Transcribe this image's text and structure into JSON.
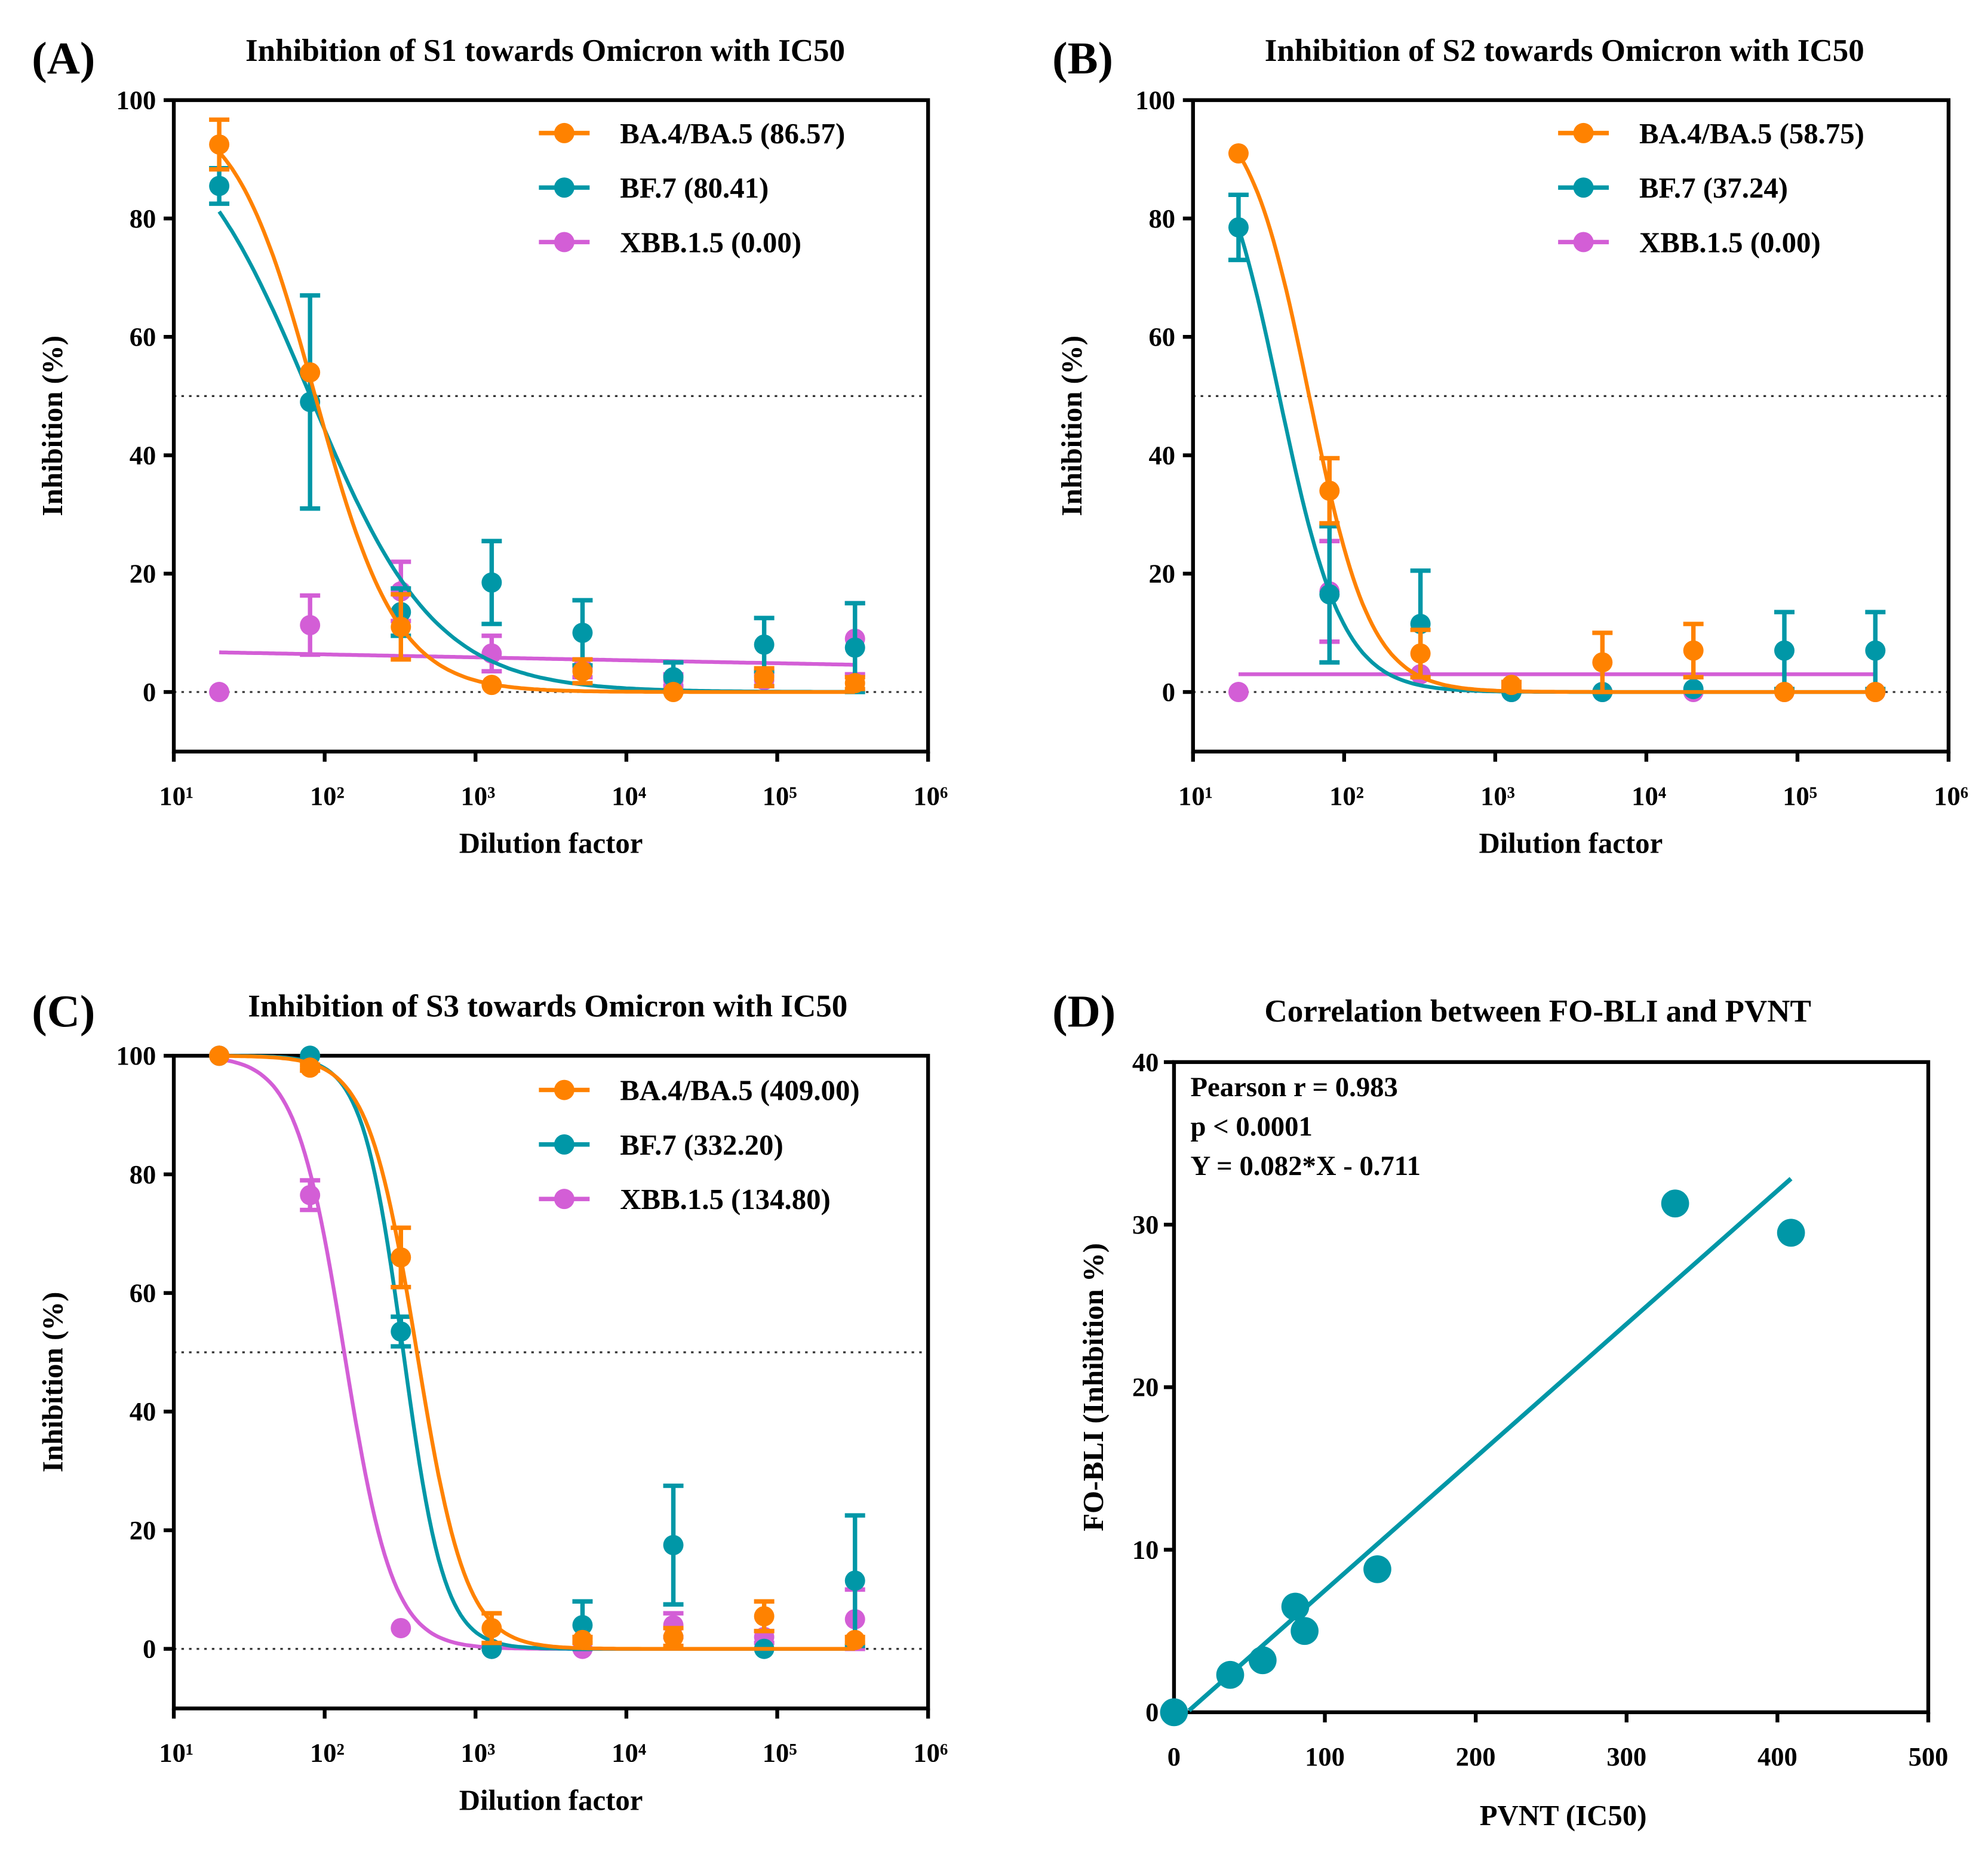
{
  "colors": {
    "BA.4/BA.5": "#FF8200",
    "BF.7": "#0097A7",
    "XBB.1.5": "#D35ED6",
    "axis": "#000000"
  },
  "chart_data": [
    {
      "panel": "(A)",
      "type": "line",
      "title": "Inhibition of S1 towards Omicron with IC50",
      "xlabel": "Dilution factor",
      "ylabel": "Inhibition (%)",
      "xscale": "log",
      "xlim": [
        10,
        1000000
      ],
      "ylim": [
        -10,
        100
      ],
      "yticks": [
        0,
        20,
        40,
        60,
        80,
        100
      ],
      "xticks": [
        "10¹",
        "10²",
        "10³",
        "10⁴",
        "10⁵",
        "10⁶"
      ],
      "reference_lines": [
        0,
        50
      ],
      "legend_position": "top-right",
      "x": [
        20,
        80,
        320,
        1280,
        5120,
        20480,
        81920,
        327680
      ],
      "series": [
        {
          "name": "BA.4/BA.5 (86.57)",
          "key": "BA.4/BA.5",
          "values": [
            92.5,
            54,
            11,
            1.2,
            3.5,
            0,
            2.5,
            1.5
          ],
          "error": [
            4.2,
            0,
            5.5,
            0,
            2,
            0,
            1.5,
            1
          ],
          "fit": {
            "type": "hill",
            "top": 100,
            "bottom": 0,
            "ic50": 86.57,
            "hill": 1.6
          }
        },
        {
          "name": "BF.7 (80.41)",
          "key": "BF.7",
          "values": [
            85.5,
            49,
            13.5,
            18.5,
            10,
            2.5,
            8,
            7.5
          ],
          "error": [
            3,
            18,
            4,
            7,
            5.5,
            2.5,
            4.5,
            7.5
          ],
          "fit": {
            "type": "hill",
            "top": 100,
            "bottom": 0,
            "ic50": 80.41,
            "hill": 1.05
          }
        },
        {
          "name": "XBB.1.5 (0.00)",
          "key": "XBB.1.5",
          "values": [
            0,
            11.3,
            17,
            6.5,
            4,
            2,
            2,
            9
          ],
          "error": [
            0,
            5,
            5,
            3,
            1.5,
            1,
            1,
            6
          ],
          "fit": {
            "type": "linear-log",
            "start": 6.7,
            "end": 4.6
          }
        }
      ]
    },
    {
      "panel": "(B)",
      "type": "line",
      "title": "Inhibition of S2 towards Omicron with IC50",
      "xlabel": "Dilution factor",
      "ylabel": "Inhibition (%)",
      "xscale": "log",
      "xlim": [
        10,
        1000000
      ],
      "ylim": [
        -10,
        100
      ],
      "yticks": [
        0,
        20,
        40,
        60,
        80,
        100
      ],
      "xticks": [
        "10¹",
        "10²",
        "10³",
        "10⁴",
        "10⁵",
        "10⁶"
      ],
      "reference_lines": [
        0,
        50
      ],
      "legend_position": "top-right",
      "x": [
        20,
        80,
        320,
        1280,
        5120,
        20480,
        81920,
        327680
      ],
      "series": [
        {
          "name": "BA.4/BA.5 (58.75)",
          "key": "BA.4/BA.5",
          "values": [
            91,
            34,
            6.5,
            1.2,
            5,
            7,
            0,
            0
          ],
          "error": [
            0,
            5.5,
            4,
            0.5,
            5,
            4.5,
            0,
            0
          ],
          "fit": {
            "type": "hill",
            "top": 100,
            "bottom": 0,
            "ic50": 58.75,
            "hill": 2.14
          }
        },
        {
          "name": "BF.7 (37.24)",
          "key": "BF.7",
          "values": [
            78.5,
            16.5,
            11.5,
            0,
            0,
            0.5,
            7,
            7
          ],
          "error": [
            5.5,
            11.5,
            9,
            0,
            0,
            0,
            6.5,
            6.5
          ],
          "fit": {
            "type": "hill",
            "top": 100,
            "bottom": 0,
            "ic50": 37.24,
            "hill": 2.08
          }
        },
        {
          "name": "XBB.1.5 (0.00)",
          "key": "XBB.1.5",
          "values": [
            0,
            17,
            3,
            0,
            0,
            0,
            0,
            0
          ],
          "error": [
            0,
            8.5,
            0,
            0,
            0,
            0,
            0,
            0
          ],
          "fit": {
            "type": "linear-log",
            "start": 3,
            "end": 3
          }
        }
      ]
    },
    {
      "panel": "(C)",
      "type": "line",
      "title": "Inhibition of S3 towards Omicron with IC50",
      "xlabel": "Dilution factor",
      "ylabel": "Inhibition (%)",
      "xscale": "log",
      "xlim": [
        10,
        1000000
      ],
      "ylim": [
        -10,
        100
      ],
      "yticks": [
        0,
        20,
        40,
        60,
        80,
        100
      ],
      "xticks": [
        "10¹",
        "10²",
        "10³",
        "10⁴",
        "10⁵",
        "10⁶"
      ],
      "reference_lines": [
        0,
        50
      ],
      "legend_position": "top-right",
      "x": [
        20,
        80,
        320,
        1280,
        5120,
        20480,
        81920,
        327680
      ],
      "series": [
        {
          "name": "BA.4/BA.5 (409.00)",
          "key": "BA.4/BA.5",
          "values": [
            100,
            98,
            66,
            3.5,
            1.5,
            2,
            5.5,
            1.5
          ],
          "error": [
            0,
            0.5,
            5,
            2.5,
            0.5,
            1.5,
            2.5,
            0.5
          ],
          "fit": {
            "type": "hill",
            "top": 100,
            "bottom": 0,
            "ic50": 409.0,
            "hill": 2.67
          }
        },
        {
          "name": "BF.7 (332.20)",
          "key": "BF.7",
          "values": [
            100,
            100,
            53.5,
            0,
            4,
            17.5,
            0,
            11.5
          ],
          "error": [
            0,
            0,
            2.5,
            0,
            4,
            10,
            0,
            11
          ],
          "fit": {
            "type": "hill",
            "top": 100,
            "bottom": 0,
            "ic50": 332.2,
            "hill": 3.2
          }
        },
        {
          "name": "XBB.1.5 (134.80)",
          "key": "XBB.1.5",
          "values": [
            100,
            76.5,
            3.5,
            0,
            0,
            4,
            2,
            5
          ],
          "error": [
            0,
            2.5,
            0,
            0,
            0,
            2,
            1,
            5
          ],
          "fit": {
            "type": "hill",
            "top": 100,
            "bottom": 0,
            "ic50": 134.8,
            "hill": 2.7
          }
        }
      ]
    },
    {
      "panel": "(D)",
      "type": "scatter",
      "title": "Correlation between FO-BLI and PVNT",
      "xlabel": "PVNT (IC50)",
      "ylabel": "FO-BLI (Inhibition %)",
      "xlim": [
        0,
        500
      ],
      "ylim": [
        0,
        40
      ],
      "xticks": [
        0,
        100,
        200,
        300,
        400,
        500
      ],
      "yticks": [
        0,
        10,
        20,
        30,
        40
      ],
      "annotations": [
        "Pearson r = 0.983",
        "p < 0.0001",
        "Y = 0.082*X - 0.711"
      ],
      "points": [
        [
          0,
          0
        ],
        [
          37.24,
          2.3
        ],
        [
          58.75,
          3.2
        ],
        [
          80.41,
          6.5
        ],
        [
          86.57,
          5.0
        ],
        [
          134.8,
          8.8
        ],
        [
          332.2,
          31.3
        ],
        [
          409.0,
          29.5
        ]
      ],
      "regression": {
        "slope": 0.082,
        "intercept": -0.711,
        "x_range": [
          10,
          409
        ]
      }
    }
  ]
}
